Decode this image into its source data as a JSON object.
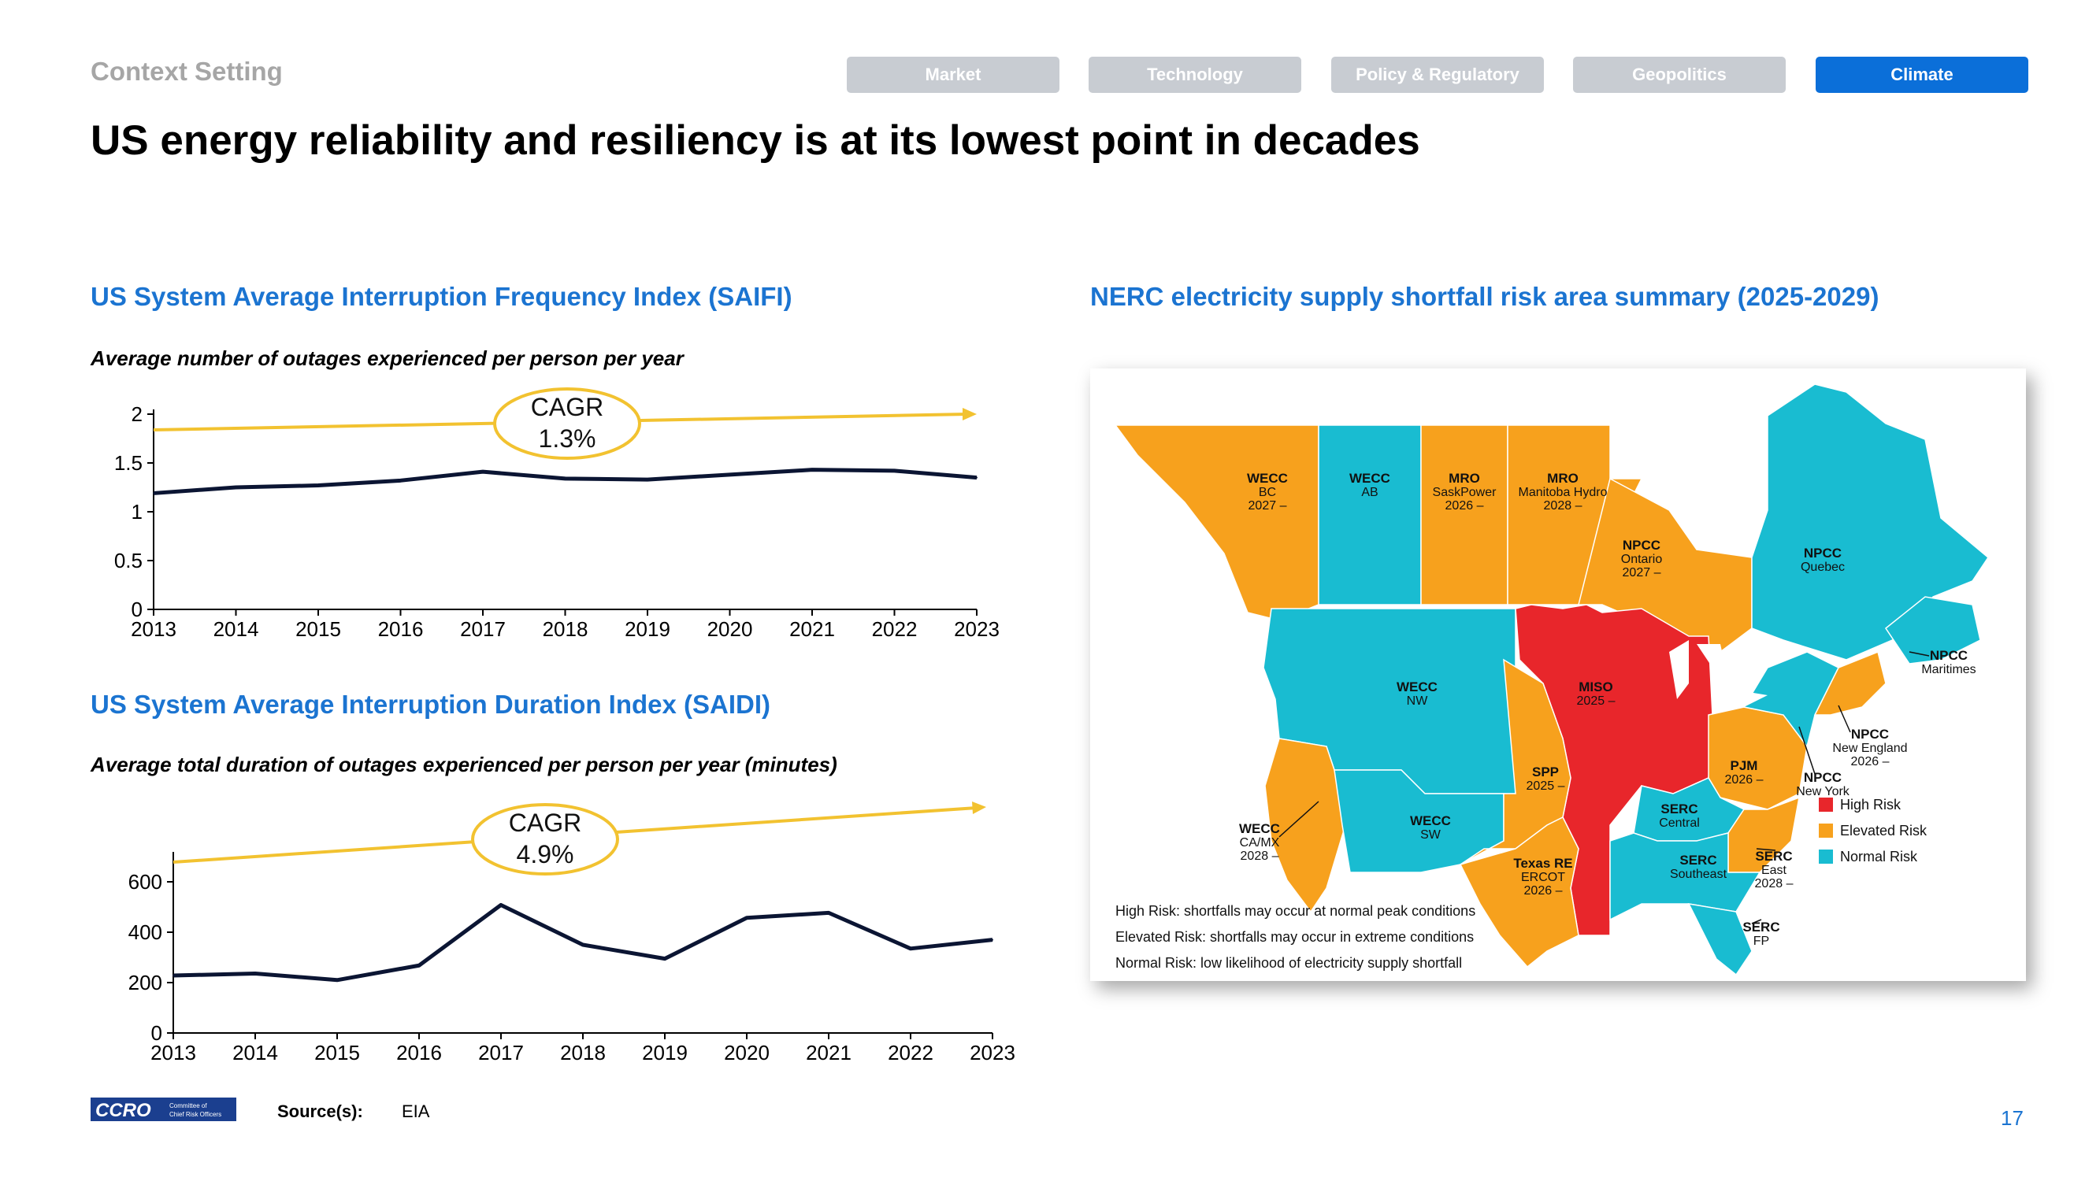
{
  "header": {
    "section": "Context Setting",
    "tabs": [
      {
        "label": "Market",
        "active": false
      },
      {
        "label": "Technology",
        "active": false
      },
      {
        "label": "Policy & Regulatory",
        "active": false
      },
      {
        "label": "Geopolitics",
        "active": false
      },
      {
        "label": "Climate",
        "active": true
      }
    ],
    "title": "US energy reliability and resiliency is at its lowest point in decades"
  },
  "saifi": {
    "title": "US System Average Interruption Frequency Index (SAIFI)",
    "subtitle": "Average number of outages experienced per person per year",
    "cagr_label": "CAGR",
    "cagr_value": "1.3%"
  },
  "saidi": {
    "title": "US System Average Interruption Duration Index (SAIDI)",
    "subtitle": "Average total duration of outages experienced per person per year (minutes)",
    "cagr_label": "CAGR",
    "cagr_value": "4.9%"
  },
  "chart_data": [
    {
      "type": "line",
      "title": "US System Average Interruption Frequency Index (SAIFI)",
      "x": [
        "2013",
        "2014",
        "2015",
        "2016",
        "2017",
        "2018",
        "2019",
        "2020",
        "2021",
        "2022",
        "2023"
      ],
      "values": [
        1.19,
        1.25,
        1.27,
        1.32,
        1.41,
        1.34,
        1.33,
        1.38,
        1.43,
        1.42,
        1.35
      ],
      "yticks": [
        "0",
        "0.5",
        "1",
        "1.5",
        "2"
      ],
      "ylim": [
        0,
        2
      ],
      "line_color": "#0b1533",
      "trend_color": "#f2c230",
      "grid": false
    },
    {
      "type": "line",
      "title": "US System Average Interruption Duration Index (SAIDI)",
      "x": [
        "2013",
        "2014",
        "2015",
        "2016",
        "2017",
        "2018",
        "2019",
        "2020",
        "2021",
        "2022",
        "2023"
      ],
      "values": [
        228,
        236,
        210,
        268,
        508,
        350,
        295,
        457,
        477,
        335,
        370
      ],
      "yticks": [
        "0",
        "200",
        "400",
        "600"
      ],
      "ylim": [
        0,
        700
      ],
      "line_color": "#0b1533",
      "trend_color": "#f2c230",
      "grid": false
    }
  ],
  "map": {
    "title": "NERC electricity supply shortfall risk area summary (2025-2029)",
    "colors": {
      "high": "#e8262b",
      "elevated": "#f7a11d",
      "normal": "#19bcd1"
    },
    "regions": [
      {
        "l1": "WECC",
        "l2": "BC",
        "l3": "2027 –",
        "risk": "elevated"
      },
      {
        "l1": "WECC",
        "l2": "AB",
        "l3": "",
        "risk": "normal"
      },
      {
        "l1": "MRO",
        "l2": "SaskPower",
        "l3": "2026 –",
        "risk": "elevated"
      },
      {
        "l1": "MRO",
        "l2": "Manitoba Hydro",
        "l3": "2028 –",
        "risk": "elevated"
      },
      {
        "l1": "NPCC",
        "l2": "Ontario",
        "l3": "2027 –",
        "risk": "elevated"
      },
      {
        "l1": "NPCC",
        "l2": "Quebec",
        "l3": "",
        "risk": "normal"
      },
      {
        "l1": "NPCC",
        "l2": "Maritimes",
        "l3": "",
        "risk": "normal"
      },
      {
        "l1": "NPCC",
        "l2": "New England",
        "l3": "2026 –",
        "risk": "elevated"
      },
      {
        "l1": "NPCC",
        "l2": "New York",
        "l3": "",
        "risk": "normal"
      },
      {
        "l1": "WECC",
        "l2": "NW",
        "l3": "",
        "risk": "normal"
      },
      {
        "l1": "MISO",
        "l2": "2025 –",
        "l3": "",
        "risk": "high"
      },
      {
        "l1": "SPP",
        "l2": "2025 –",
        "l3": "",
        "risk": "elevated"
      },
      {
        "l1": "PJM",
        "l2": "2026 –",
        "l3": "",
        "risk": "elevated"
      },
      {
        "l1": "SERC",
        "l2": "Central",
        "l3": "",
        "risk": "normal"
      },
      {
        "l1": "WECC",
        "l2": "CA/MX",
        "l3": "2028 –",
        "risk": "elevated"
      },
      {
        "l1": "WECC",
        "l2": "SW",
        "l3": "",
        "risk": "normal"
      },
      {
        "l1": "Texas RE",
        "l2": "ERCOT",
        "l3": "2026 –",
        "risk": "elevated"
      },
      {
        "l1": "SERC",
        "l2": "Southeast",
        "l3": "",
        "risk": "normal"
      },
      {
        "l1": "SERC",
        "l2": "East",
        "l3": "2028 –",
        "risk": "elevated"
      },
      {
        "l1": "SERC",
        "l2": "FP",
        "l3": "",
        "risk": "normal"
      }
    ],
    "legend": [
      {
        "label": "High Risk",
        "risk": "high"
      },
      {
        "label": "Elevated Risk",
        "risk": "elevated"
      },
      {
        "label": "Normal Risk",
        "risk": "normal"
      }
    ],
    "notes": [
      "High Risk: shortfalls may occur at normal peak conditions",
      "Elevated Risk: shortfalls may occur in extreme conditions",
      "Normal Risk: low likelihood of electricity supply shortfall"
    ]
  },
  "footer": {
    "logo_text": "CCRO",
    "logo_sub1": "Committee of",
    "logo_sub2": "Chief Risk Officers",
    "source_label": "Source(s):",
    "source_value": "EIA",
    "page_number": "17"
  }
}
